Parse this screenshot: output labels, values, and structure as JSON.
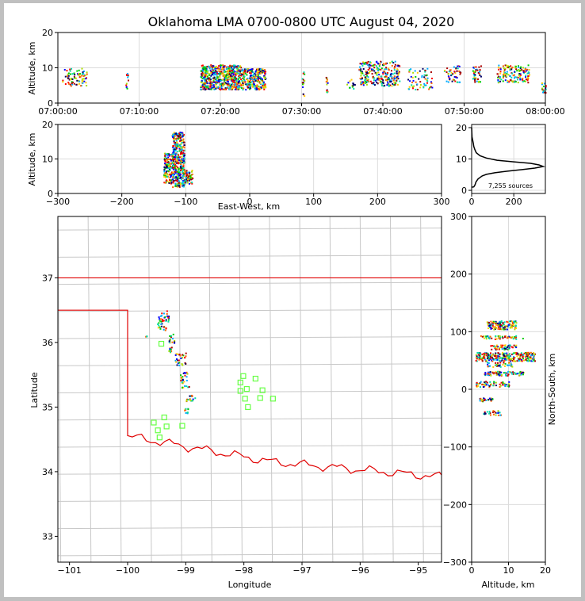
{
  "title": "Oklahoma LMA 0700-0800 UTC August 04, 2020",
  "chart_data": [
    {
      "id": "time_height",
      "type": "scatter",
      "xlabel": "",
      "ylabel": "Altitude, km",
      "xlim": [
        0,
        60
      ],
      "ylim": [
        0,
        20
      ],
      "xticks": [
        0,
        10,
        20,
        30,
        40,
        50,
        60
      ],
      "xtick_labels": [
        "07:00:00",
        "07:10:00",
        "07:20:00",
        "07:30:00",
        "07:40:00",
        "07:50:00",
        "08:00:00"
      ],
      "yticks": [
        0,
        10,
        20
      ],
      "ytick_labels": [
        "0",
        "10",
        "20"
      ],
      "clusters": [
        {
          "x": [
            0.5,
            3.5
          ],
          "y": [
            5,
            10
          ],
          "n": 80
        },
        {
          "x": [
            8.3,
            8.6
          ],
          "y": [
            4,
            9
          ],
          "n": 12
        },
        {
          "x": [
            17.5,
            22.5
          ],
          "y": [
            4,
            11
          ],
          "n": 600
        },
        {
          "x": [
            22.5,
            25.5
          ],
          "y": [
            4,
            10
          ],
          "n": 260
        },
        {
          "x": [
            30,
            30.3
          ],
          "y": [
            2,
            9
          ],
          "n": 15
        },
        {
          "x": [
            32.9,
            33.2
          ],
          "y": [
            3,
            8
          ],
          "n": 12
        },
        {
          "x": [
            35.5,
            36.5
          ],
          "y": [
            4,
            7
          ],
          "n": 15
        },
        {
          "x": [
            37,
            42
          ],
          "y": [
            5,
            12
          ],
          "n": 260
        },
        {
          "x": [
            43,
            46
          ],
          "y": [
            4,
            10
          ],
          "n": 60
        },
        {
          "x": [
            47.5,
            49.5
          ],
          "y": [
            6,
            11
          ],
          "n": 50
        },
        {
          "x": [
            51,
            52
          ],
          "y": [
            6,
            11
          ],
          "n": 40
        },
        {
          "x": [
            54,
            58
          ],
          "y": [
            6,
            11
          ],
          "n": 140
        },
        {
          "x": [
            59.5,
            60
          ],
          "y": [
            3,
            6
          ],
          "n": 20
        }
      ]
    },
    {
      "id": "ew_alt",
      "type": "scatter",
      "xlabel": "East-West, km",
      "ylabel": "Altitude, km",
      "xlim": [
        -300,
        300
      ],
      "ylim": [
        0,
        20
      ],
      "xticks": [
        -300,
        -200,
        -100,
        0,
        100,
        200,
        300
      ],
      "xtick_labels": [
        "−300",
        "−200",
        "−100",
        "0",
        "100",
        "200",
        "300"
      ],
      "yticks": [
        0,
        10,
        20
      ],
      "ytick_labels": [
        "0",
        "10",
        "20"
      ],
      "clusters": [
        {
          "x": [
            -135,
            -122
          ],
          "y": [
            3,
            12
          ],
          "n": 120
        },
        {
          "x": [
            -122,
            -103
          ],
          "y": [
            2,
            18
          ],
          "n": 400
        },
        {
          "x": [
            -103,
            -90
          ],
          "y": [
            3,
            7
          ],
          "n": 60
        }
      ]
    },
    {
      "id": "alt_hist",
      "type": "line",
      "xlim": [
        0,
        350
      ],
      "ylim": [
        -1,
        21
      ],
      "xticks": [
        0,
        200
      ],
      "xtick_labels": [
        "0",
        "200"
      ],
      "yticks": [
        0,
        10,
        20
      ],
      "ytick_labels": [
        "0",
        "10",
        "20"
      ],
      "annotation": "7,255 sources",
      "counts": [
        [
          0,
          20
        ],
        [
          2,
          17
        ],
        [
          5,
          16
        ],
        [
          8,
          15
        ],
        [
          10,
          14
        ],
        [
          15,
          13
        ],
        [
          22,
          12
        ],
        [
          40,
          11
        ],
        [
          70,
          10.3
        ],
        [
          120,
          9.6
        ],
        [
          200,
          9.1
        ],
        [
          280,
          8.6
        ],
        [
          320,
          8.1
        ],
        [
          340,
          7.6
        ],
        [
          300,
          7.1
        ],
        [
          240,
          6.6
        ],
        [
          170,
          6.1
        ],
        [
          110,
          5.6
        ],
        [
          70,
          5.1
        ],
        [
          50,
          4.6
        ],
        [
          40,
          4.1
        ],
        [
          30,
          3.6
        ],
        [
          25,
          3.1
        ],
        [
          20,
          2.6
        ],
        [
          18,
          2.1
        ],
        [
          15,
          1.6
        ],
        [
          10,
          1.1
        ],
        [
          0,
          1
        ]
      ]
    },
    {
      "id": "plan_view",
      "type": "map",
      "xlabel": "Longitude",
      "ylabel": "Latitude",
      "xlim": [
        -101.2,
        -94.6
      ],
      "ylim": [
        32.6,
        37.95
      ],
      "xticks": [
        -101,
        -100,
        -99,
        -98,
        -97,
        -96,
        -95
      ],
      "xtick_labels": [
        "−101",
        "−100",
        "−99",
        "−98",
        "−97",
        "−96",
        "−95"
      ],
      "yticks": [
        33,
        34,
        35,
        36,
        37
      ],
      "ytick_labels": [
        "33",
        "34",
        "35",
        "36",
        "37"
      ],
      "stations": [
        [
          -99.42,
          35.98
        ],
        [
          -99.37,
          34.84
        ],
        [
          -99.48,
          34.64
        ],
        [
          -99.45,
          34.53
        ],
        [
          -99.55,
          34.76
        ],
        [
          -99.33,
          34.7
        ],
        [
          -99.06,
          34.71
        ],
        [
          -98.01,
          35.48
        ],
        [
          -98.06,
          35.38
        ],
        [
          -98.06,
          35.25
        ],
        [
          -97.95,
          35.28
        ],
        [
          -97.8,
          35.44
        ],
        [
          -97.68,
          35.26
        ],
        [
          -97.72,
          35.14
        ],
        [
          -97.5,
          35.13
        ],
        [
          -97.98,
          35.13
        ],
        [
          -97.93,
          35.0
        ]
      ],
      "clusters": [
        {
          "lon": [
            -99.5,
            -99.3
          ],
          "lat": [
            36.2,
            36.5
          ],
          "n": 40
        },
        {
          "lon": [
            -99.3,
            -99.15
          ],
          "lat": [
            36.0,
            36.15
          ],
          "n": 15
        },
        {
          "lon": [
            -99.3,
            -99.25
          ],
          "lat": [
            35.85,
            35.95
          ],
          "n": 10
        },
        {
          "lon": [
            -99.2,
            -99.0
          ],
          "lat": [
            35.65,
            35.85
          ],
          "n": 30
        },
        {
          "lon": [
            -99.1,
            -98.95
          ],
          "lat": [
            35.3,
            35.55
          ],
          "n": 30
        },
        {
          "lon": [
            -99.0,
            -98.85
          ],
          "lat": [
            35.1,
            35.2
          ],
          "n": 20
        },
        {
          "lon": [
            -99.05,
            -98.95
          ],
          "lat": [
            34.9,
            35.0
          ],
          "n": 10
        },
        {
          "lon": [
            -99.7,
            -99.65
          ],
          "lat": [
            36.1,
            36.12
          ],
          "n": 3
        }
      ]
    },
    {
      "id": "ns_alt",
      "type": "scatter",
      "xlabel": "Altitude, km",
      "ylabel": "North-South, km",
      "xlim": [
        0,
        20
      ],
      "ylim": [
        -300,
        300
      ],
      "xticks": [
        0,
        10,
        20
      ],
      "xtick_labels": [
        "0",
        "10",
        "20"
      ],
      "yticks": [
        -300,
        -200,
        -100,
        0,
        100,
        200,
        300
      ],
      "ytick_labels": [
        "−300",
        "−200",
        "−100",
        "0",
        "100",
        "200",
        "300"
      ],
      "clusters": [
        {
          "x": [
            4,
            12
          ],
          "y": [
            105,
            120
          ],
          "n": 120
        },
        {
          "x": [
            2,
            14
          ],
          "y": [
            88,
            94
          ],
          "n": 50
        },
        {
          "x": [
            5,
            12
          ],
          "y": [
            70,
            78
          ],
          "n": 50
        },
        {
          "x": [
            1,
            17
          ],
          "y": [
            50,
            65
          ],
          "n": 250
        },
        {
          "x": [
            4,
            11
          ],
          "y": [
            40,
            48
          ],
          "n": 40
        },
        {
          "x": [
            3,
            14
          ],
          "y": [
            25,
            32
          ],
          "n": 80
        },
        {
          "x": [
            1,
            10
          ],
          "y": [
            5,
            15
          ],
          "n": 60
        },
        {
          "x": [
            2,
            6
          ],
          "y": [
            -20,
            -14
          ],
          "n": 25
        },
        {
          "x": [
            3,
            8
          ],
          "y": [
            -44,
            -36
          ],
          "n": 25
        }
      ]
    }
  ]
}
